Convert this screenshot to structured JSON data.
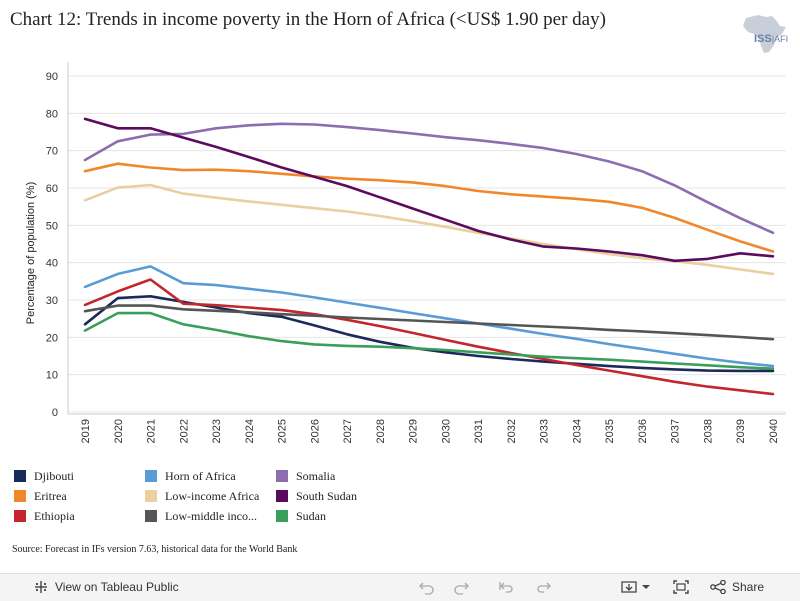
{
  "title": "Chart 12: Trends in income poverty in the Horn of Africa (<US$ 1.90 per day)",
  "logo": {
    "text": "ISS",
    "sub": "AFI"
  },
  "source": "Source: Forecast in IFs version 7.63, historical data for the World Bank",
  "toolbar": {
    "view_label": "View on Tableau Public",
    "share_label": "Share"
  },
  "icons": {
    "view": "tableau-plus-icon",
    "undo": "undo-icon",
    "redo": "redo-icon",
    "revert": "revert-icon",
    "forward": "forward-icon",
    "download": "download-icon",
    "fullscreen": "fullscreen-icon",
    "share": "share-icon"
  },
  "chart_data": {
    "type": "line",
    "title": "Chart 12: Trends in income poverty in the Horn of Africa (<US$ 1.90 per day)",
    "xlabel": "",
    "ylabel": "Percentage of population (%)",
    "ylim": [
      0,
      90
    ],
    "yticks": [
      0,
      10,
      20,
      30,
      40,
      50,
      60,
      70,
      80,
      90
    ],
    "grid": "horizontal",
    "legend_position": "bottom",
    "x": [
      2019,
      2020,
      2021,
      2022,
      2023,
      2024,
      2025,
      2026,
      2027,
      2028,
      2029,
      2030,
      2031,
      2032,
      2033,
      2034,
      2035,
      2036,
      2037,
      2038,
      2039,
      2040
    ],
    "series": [
      {
        "name": "Djibouti",
        "color": "#1c2a5a",
        "values": [
          23.5,
          30.5,
          31,
          29.5,
          28,
          26.5,
          25.5,
          23.2,
          20.8,
          18.8,
          17.2,
          16,
          15,
          14.2,
          13.5,
          12.9,
          12.3,
          11.8,
          11.4,
          11.1,
          11,
          11
        ]
      },
      {
        "name": "Eritrea",
        "color": "#f0882b",
        "values": [
          64.5,
          66.5,
          65.5,
          64.8,
          64.9,
          64.5,
          63.8,
          63.1,
          62.5,
          62.1,
          61.5,
          60.5,
          59.2,
          58.3,
          57.7,
          57.1,
          56.3,
          54.7,
          52,
          48.8,
          45.7,
          43
        ]
      },
      {
        "name": "Ethiopia",
        "color": "#c1272d",
        "values": [
          28.7,
          32.3,
          35.5,
          29,
          28.6,
          28,
          27.3,
          26.2,
          24.7,
          23,
          21.2,
          19.3,
          17.5,
          15.8,
          14.2,
          12.6,
          11.1,
          9.6,
          8.1,
          6.8,
          5.8,
          4.8
        ]
      },
      {
        "name": "Horn of Africa",
        "color": "#5b9bd5",
        "values": [
          33.5,
          37,
          39,
          34.5,
          34,
          33,
          32,
          30.7,
          29.3,
          27.9,
          26.5,
          25.1,
          23.7,
          22.3,
          20.9,
          19.6,
          18.2,
          16.9,
          15.6,
          14.3,
          13.2,
          12.3
        ]
      },
      {
        "name": "Low-income Africa",
        "color": "#e8d0a0",
        "values": [
          56.7,
          60.1,
          60.8,
          58.5,
          57.4,
          56.4,
          55.5,
          54.6,
          53.7,
          52.5,
          51.1,
          49.6,
          48,
          46.5,
          45,
          43.6,
          42.3,
          41.2,
          40.4,
          39.4,
          38.2,
          37
        ]
      },
      {
        "name": "Low-middle inco...",
        "color": "#555555",
        "values": [
          27,
          28.5,
          28.5,
          27.5,
          27.1,
          26.7,
          26.2,
          25.8,
          25.3,
          24.9,
          24.5,
          24.1,
          23.7,
          23.3,
          22.9,
          22.5,
          22,
          21.6,
          21.1,
          20.6,
          20.1,
          19.5
        ]
      },
      {
        "name": "Somalia",
        "color": "#8a6eaf",
        "values": [
          67.5,
          72.5,
          74.3,
          74.5,
          76,
          76.8,
          77.2,
          77,
          76.3,
          75.5,
          74.6,
          73.6,
          72.8,
          71.8,
          70.7,
          69.1,
          67.1,
          64.5,
          60.7,
          56.2,
          51.9,
          48
        ]
      },
      {
        "name": "South Sudan",
        "color": "#5c0a5e",
        "values": [
          78.5,
          76,
          76,
          73.5,
          71,
          68.3,
          65.5,
          63,
          60.5,
          57.5,
          54.5,
          51.5,
          48.5,
          46.2,
          44.3,
          43.8,
          43,
          42,
          40.5,
          41,
          42.5,
          41.7
        ]
      },
      {
        "name": "Sudan",
        "color": "#3a9e5c",
        "values": [
          21.8,
          26.5,
          26.5,
          23.5,
          22,
          20.3,
          19,
          18.1,
          17.7,
          17.5,
          17.1,
          16.6,
          16,
          15.4,
          14.8,
          14.4,
          14,
          13.5,
          13,
          12.5,
          12,
          11.6
        ]
      }
    ]
  }
}
